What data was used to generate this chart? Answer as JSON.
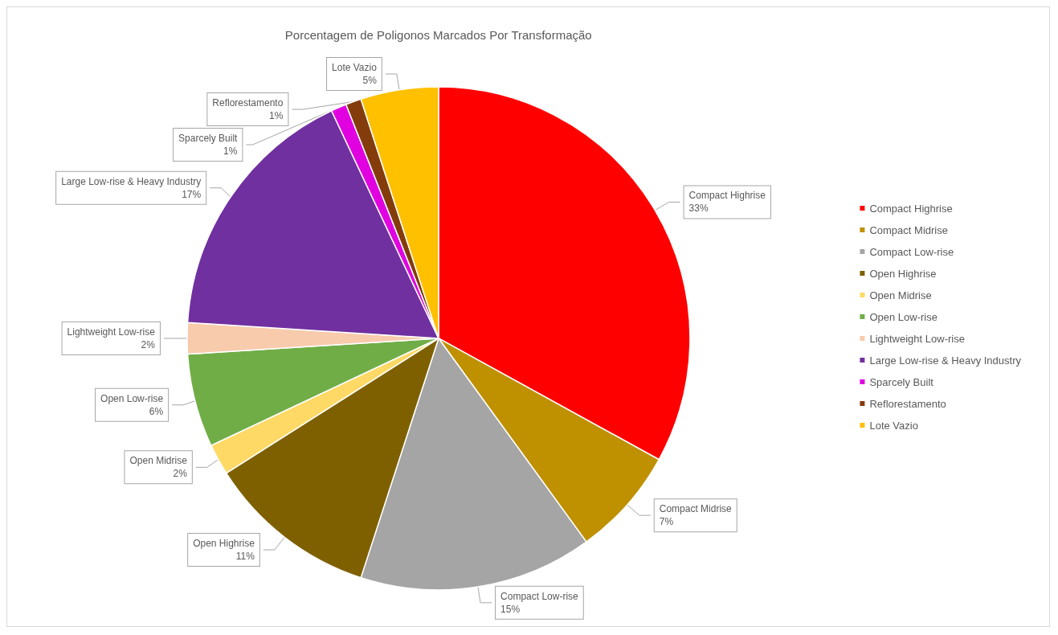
{
  "chart_data": {
    "type": "pie",
    "title": "Porcentagem de Poligonos Marcados Por Transformação",
    "categories": [
      "Compact Highrise",
      "Compact Midrise",
      "Compact Low-rise",
      "Open Highrise",
      "Open Midrise",
      "Open Low-rise",
      "Lightweight Low-rise",
      "Large Low-rise & Heavy Industry",
      "Sparcely Built",
      "Reflorestamento",
      "Lote Vazio"
    ],
    "values": [
      33,
      7,
      15,
      11,
      2,
      6,
      2,
      17,
      1,
      1,
      5
    ],
    "value_labels": [
      "33%",
      "7%",
      "15%",
      "11%",
      "2%",
      "6%",
      "2%",
      "17%",
      "1%",
      "1%",
      "5%"
    ],
    "colors": [
      "#ff0000",
      "#bf9000",
      "#a5a5a5",
      "#7f6000",
      "#ffd966",
      "#70ad47",
      "#f8cbad",
      "#7030a0",
      "#e000e0",
      "#843c0c",
      "#ffc000"
    ],
    "legend": "right"
  }
}
